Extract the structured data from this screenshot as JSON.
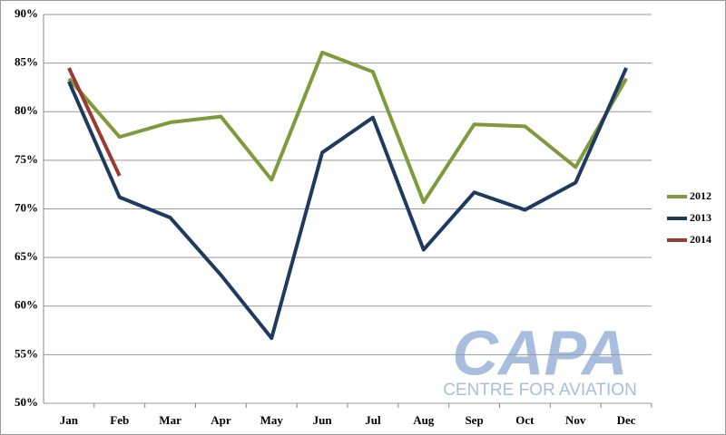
{
  "chart_data": {
    "type": "line",
    "categories": [
      "Jan",
      "Feb",
      "Mar",
      "Apr",
      "May",
      "Jun",
      "Jul",
      "Aug",
      "Sep",
      "Oct",
      "Nov",
      "Dec"
    ],
    "series": [
      {
        "name": "2012",
        "color": "#7f9a3c",
        "values": [
          83.4,
          77.4,
          78.9,
          79.5,
          73.0,
          86.1,
          84.1,
          70.7,
          78.7,
          78.5,
          74.3,
          83.4
        ]
      },
      {
        "name": "2013",
        "color": "#1f3a5f",
        "values": [
          83.1,
          71.2,
          69.1,
          63.2,
          56.7,
          75.8,
          79.4,
          65.8,
          71.7,
          69.9,
          72.7,
          84.5
        ]
      },
      {
        "name": "2014",
        "color": "#9b3a32",
        "values": [
          84.5,
          73.4,
          null,
          null,
          null,
          null,
          null,
          null,
          null,
          null,
          null,
          null
        ]
      }
    ],
    "ylim": [
      50,
      90
    ],
    "yticks": [
      {
        "value": 50,
        "label": "50%"
      },
      {
        "value": 55,
        "label": "55%"
      },
      {
        "value": 60,
        "label": "60%"
      },
      {
        "value": 65,
        "label": "65%"
      },
      {
        "value": 70,
        "label": "70%"
      },
      {
        "value": 75,
        "label": "75%"
      },
      {
        "value": 80,
        "label": "80%"
      },
      {
        "value": 85,
        "label": "85%"
      },
      {
        "value": 90,
        "label": "90%"
      }
    ],
    "grid": true,
    "legend": "right",
    "watermark": {
      "title": "CAPA",
      "subtitle": "CENTRE FOR AVIATION"
    }
  }
}
